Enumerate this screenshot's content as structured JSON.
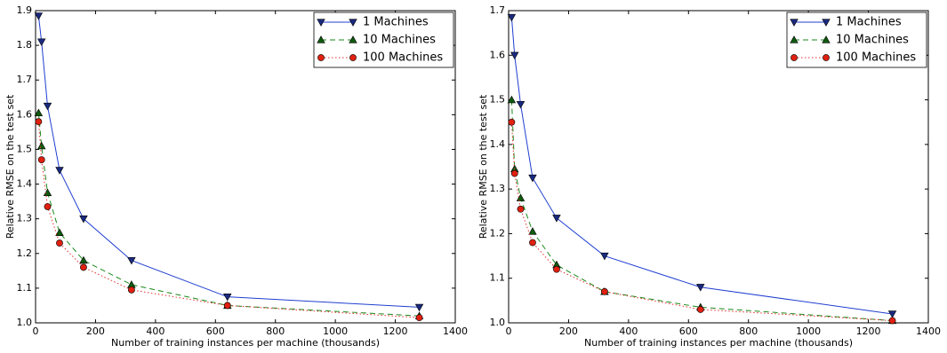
{
  "chart_data": [
    {
      "type": "line",
      "x_label": "Number of training instances per machine (thousands)",
      "y_label": "Relative RMSE on the test set",
      "x": [
        10,
        20,
        40,
        80,
        160,
        320,
        640,
        1280
      ],
      "series": [
        {
          "name": "1 Machines",
          "color": "#1f3fd0",
          "marker_color": "#1a2a80",
          "linestyle": "solid",
          "marker": "triangle-down",
          "values": [
            1.885,
            1.81,
            1.625,
            1.44,
            1.3,
            1.18,
            1.075,
            1.045
          ]
        },
        {
          "name": "10 Machines",
          "color": "#1a8a1a",
          "marker_color": "#0f5a0f",
          "linestyle": "dashed",
          "marker": "triangle-up",
          "values": [
            1.605,
            1.51,
            1.375,
            1.26,
            1.18,
            1.11,
            1.05,
            1.02
          ]
        },
        {
          "name": "100 Machines",
          "color": "#e03030",
          "marker_color": "#e02010",
          "linestyle": "dotted",
          "marker": "circle",
          "values": [
            1.58,
            1.47,
            1.335,
            1.23,
            1.16,
            1.095,
            1.05,
            1.015
          ]
        }
      ],
      "xlim": [
        0,
        1400
      ],
      "xticks": [
        0,
        200,
        400,
        600,
        800,
        1000,
        1200,
        1400
      ],
      "ylim": [
        1.0,
        1.9
      ],
      "yticks": [
        {
          "value": 1.0,
          "label": "1.0"
        },
        1.1,
        1.2,
        1.3,
        1.4,
        1.5,
        1.6,
        1.7,
        1.8,
        1.9
      ],
      "legend": "upper right"
    },
    {
      "type": "line",
      "x_label": "Number of training instances per machine (thousands)",
      "y_label": "Relative RMSE on the test set",
      "x": [
        10,
        20,
        40,
        80,
        160,
        320,
        640,
        1280
      ],
      "series": [
        {
          "name": "1 Machines",
          "color": "#1f3fd0",
          "marker_color": "#1a2a80",
          "linestyle": "solid",
          "marker": "triangle-down",
          "values": [
            1.685,
            1.6,
            1.49,
            1.325,
            1.235,
            1.15,
            1.08,
            1.02
          ]
        },
        {
          "name": "10 Machines",
          "color": "#1a8a1a",
          "marker_color": "#0f5a0f",
          "linestyle": "dashed",
          "marker": "triangle-up",
          "values": [
            1.5,
            1.345,
            1.28,
            1.205,
            1.13,
            1.07,
            1.035,
            1.005
          ]
        },
        {
          "name": "100 Machines",
          "color": "#e03030",
          "marker_color": "#e02010",
          "linestyle": "dotted",
          "marker": "circle",
          "values": [
            1.45,
            1.335,
            1.255,
            1.18,
            1.12,
            1.07,
            1.03,
            1.005
          ]
        }
      ],
      "xlim": [
        0,
        1400
      ],
      "xticks": [
        0,
        200,
        400,
        600,
        800,
        1000,
        1200,
        1400
      ],
      "ylim": [
        1.0,
        1.7
      ],
      "yticks": [
        {
          "value": 1.0,
          "label": "1.0"
        },
        1.1,
        1.2,
        1.3,
        1.4,
        1.5,
        1.6,
        1.7
      ],
      "legend": "upper right"
    }
  ]
}
